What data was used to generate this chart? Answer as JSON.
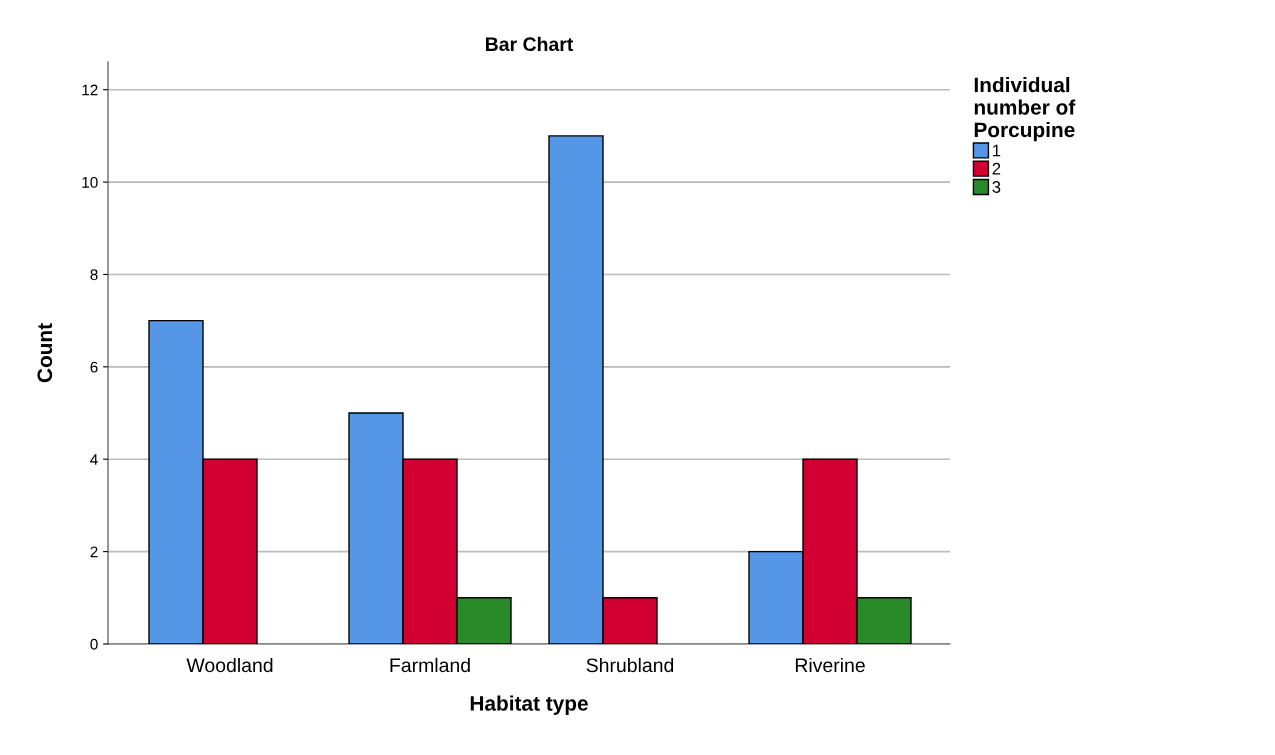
{
  "chart_data": {
    "type": "bar",
    "title": "Bar Chart",
    "xlabel": "Habitat type",
    "ylabel": "Count",
    "legend_title": "Individual\nnumber of\nPorcupine",
    "categories": [
      "Woodland",
      "Farmland",
      "Shrubland",
      "Riverine"
    ],
    "series": [
      {
        "name": "1",
        "color": "#5596e6",
        "values": [
          7,
          5,
          11,
          2
        ]
      },
      {
        "name": "2",
        "color": "#d20032",
        "values": [
          4,
          4,
          1,
          4
        ]
      },
      {
        "name": "3",
        "color": "#2a8a2a",
        "values": [
          null,
          1,
          null,
          1
        ]
      }
    ],
    "ylim": [
      0,
      12.6
    ],
    "yticks": [
      0,
      2,
      4,
      6,
      8,
      10,
      12
    ],
    "grid": "y",
    "legend": "top right"
  }
}
